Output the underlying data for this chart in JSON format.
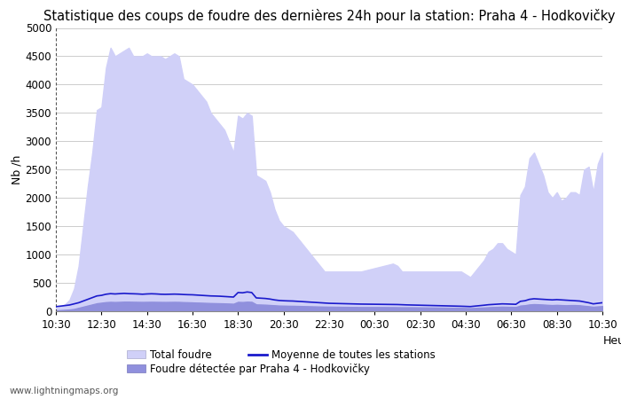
{
  "title": "Statistique des coups de foudre des dernières 24h pour la station: Praha 4 - Hodkovičky",
  "ylabel": "Nb /h",
  "xlabel_right": "Heure",
  "watermark": "www.lightningmaps.org",
  "legend": {
    "total_foudre_label": "Total foudre",
    "moyenne_label": "Moyenne de toutes les stations",
    "locale_label": "Foudre détectée par Praha 4 - Hodkovičky"
  },
  "x_ticks": [
    "10:30",
    "12:30",
    "14:30",
    "16:30",
    "18:30",
    "20:30",
    "22:30",
    "00:30",
    "02:30",
    "04:30",
    "06:30",
    "08:30",
    "10:30"
  ],
  "ylim": [
    0,
    5000
  ],
  "y_ticks": [
    0,
    500,
    1000,
    1500,
    2000,
    2500,
    3000,
    3500,
    4000,
    4500,
    5000
  ],
  "total_foudre": [
    50,
    80,
    120,
    200,
    400,
    800,
    1500,
    2200,
    2800,
    3550,
    3600,
    4300,
    4650,
    4500,
    4550,
    4600,
    4650,
    4500,
    4500,
    4500,
    4550,
    4500,
    4500,
    4500,
    4450,
    4500,
    4550,
    4500,
    4100,
    4050,
    4000,
    3900,
    3800,
    3700,
    3500,
    3400,
    3300,
    3200,
    3000,
    2800,
    3450,
    3400,
    3500,
    3450,
    2400,
    2350,
    2300,
    2100,
    1800,
    1600,
    1500,
    1450,
    1400,
    1300,
    1200,
    1100,
    1000,
    900,
    800,
    700,
    700,
    700,
    700,
    700,
    700,
    700,
    700,
    700,
    720,
    740,
    760,
    780,
    800,
    820,
    840,
    800,
    700,
    700,
    700,
    700,
    700,
    700,
    700,
    700,
    700,
    700,
    700,
    700,
    700,
    700,
    650,
    600,
    700,
    800,
    900,
    1050,
    1100,
    1200,
    1200,
    1100,
    1050,
    1000,
    2050,
    2200,
    2700,
    2800,
    2600,
    2400,
    2100,
    2000,
    2100,
    1950,
    2000,
    2100,
    2100,
    2050,
    2500,
    2550,
    2100,
    2600,
    2800
  ],
  "moyenne": [
    80,
    90,
    100,
    110,
    130,
    150,
    180,
    210,
    240,
    270,
    280,
    300,
    310,
    305,
    310,
    315,
    310,
    308,
    305,
    300,
    305,
    308,
    305,
    300,
    298,
    300,
    302,
    300,
    295,
    292,
    290,
    285,
    280,
    275,
    270,
    268,
    265,
    260,
    255,
    250,
    330,
    325,
    340,
    330,
    235,
    230,
    225,
    215,
    200,
    190,
    185,
    182,
    180,
    175,
    170,
    165,
    160,
    155,
    150,
    145,
    140,
    138,
    136,
    134,
    132,
    130,
    128,
    126,
    125,
    124,
    123,
    122,
    121,
    120,
    119,
    118,
    115,
    112,
    110,
    108,
    106,
    104,
    102,
    100,
    98,
    96,
    94,
    92,
    90,
    88,
    85,
    82,
    90,
    98,
    106,
    115,
    120,
    125,
    130,
    128,
    125,
    122,
    175,
    185,
    210,
    220,
    215,
    210,
    205,
    200,
    205,
    200,
    195,
    190,
    185,
    180,
    165,
    150,
    130,
    140,
    150
  ],
  "locale_foudre": [
    15,
    20,
    25,
    30,
    40,
    60,
    80,
    100,
    120,
    140,
    150,
    160,
    165,
    162,
    165,
    168,
    168,
    166,
    165,
    164,
    165,
    166,
    165,
    164,
    163,
    164,
    165,
    164,
    160,
    158,
    155,
    152,
    150,
    147,
    144,
    142,
    140,
    138,
    135,
    132,
    165,
    162,
    168,
    165,
    120,
    118,
    115,
    110,
    105,
    100,
    98,
    96,
    95,
    93,
    91,
    89,
    87,
    85,
    83,
    81,
    80,
    79,
    78,
    77,
    76,
    75,
    74,
    73,
    73,
    73,
    73,
    73,
    73,
    72,
    72,
    71,
    70,
    70,
    70,
    69,
    68,
    67,
    66,
    65,
    64,
    63,
    62,
    61,
    60,
    59,
    57,
    55,
    58,
    62,
    66,
    71,
    74,
    77,
    80,
    78,
    76,
    74,
    100,
    106,
    120,
    125,
    122,
    118,
    112,
    108,
    112,
    108,
    105,
    108,
    108,
    105,
    95,
    88,
    78,
    85,
    90
  ],
  "fill_total_color": "#d0d0f8",
  "fill_locale_color": "#9090dd",
  "line_moyenne_color": "#1a1acc",
  "background_color": "#ffffff",
  "grid_color": "#cccccc",
  "title_fontsize": 10.5,
  "axis_fontsize": 9,
  "tick_fontsize": 8.5
}
